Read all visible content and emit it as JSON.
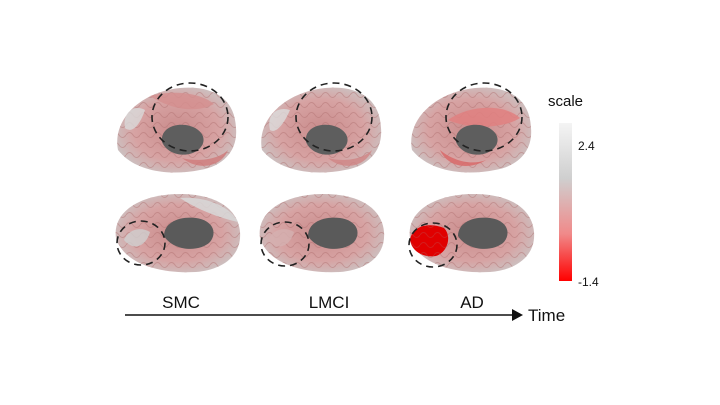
{
  "groups": [
    "SMC",
    "LMCI",
    "AD"
  ],
  "axis": {
    "label": "Time"
  },
  "colorbar": {
    "title": "scale",
    "max": "2.4",
    "min": "-1.4",
    "top_color": "#f2f2f2",
    "mid_color": "#c9c9c9",
    "bottom_color": "#ff0000"
  },
  "views": [
    "lateral",
    "medial"
  ],
  "highlight": {
    "row": "medial",
    "group": "AD",
    "color": "#e00000"
  }
}
